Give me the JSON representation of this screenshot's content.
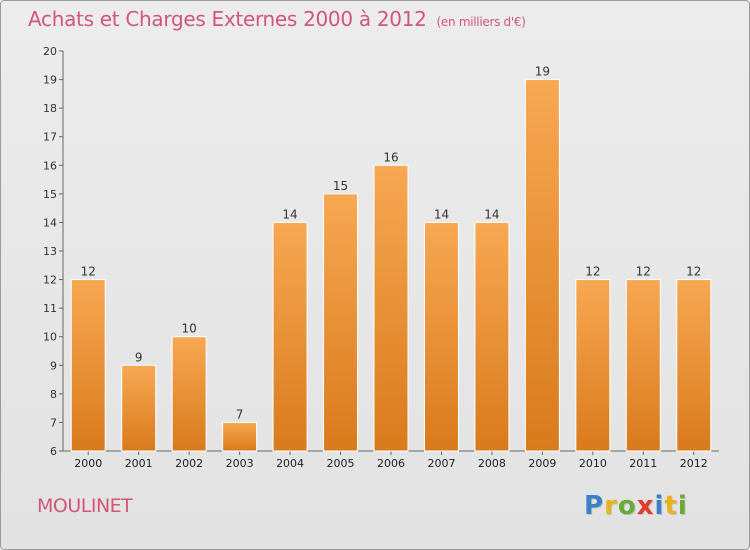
{
  "title": "Achats et Charges Externes 2000 à 2012",
  "subtitle": "(en milliers d'€)",
  "place_name": "MOULINET",
  "logo": {
    "letters": [
      {
        "char": "P",
        "color": "#3b7fc4"
      },
      {
        "char": "r",
        "color": "#e8b21a"
      },
      {
        "char": "o",
        "color": "#6aa936"
      },
      {
        "char": "x",
        "color": "#e23b2a"
      },
      {
        "char": "i",
        "color": "#3b7fc4"
      },
      {
        "char": "t",
        "color": "#e8b21a"
      },
      {
        "char": "i",
        "color": "#6aa936"
      }
    ]
  },
  "colors": {
    "bar_light": "#f7a852",
    "bar_dark": "#d97a1c",
    "title": "#d1567a"
  },
  "chart_data": {
    "type": "bar",
    "title": "Achats et Charges Externes 2000 à 2012",
    "subtitle": "(en milliers d'€)",
    "categories": [
      "2000",
      "2001",
      "2002",
      "2003",
      "2004",
      "2005",
      "2006",
      "2007",
      "2008",
      "2009",
      "2010",
      "2011",
      "2012"
    ],
    "values": [
      12,
      9,
      10,
      7,
      14,
      15,
      16,
      14,
      14,
      19,
      12,
      12,
      12
    ],
    "ylim": [
      6,
      20
    ],
    "yticks": [
      6,
      7,
      8,
      9,
      10,
      11,
      12,
      13,
      14,
      15,
      16,
      17,
      18,
      19,
      20
    ],
    "grid": false,
    "legend": "none"
  }
}
